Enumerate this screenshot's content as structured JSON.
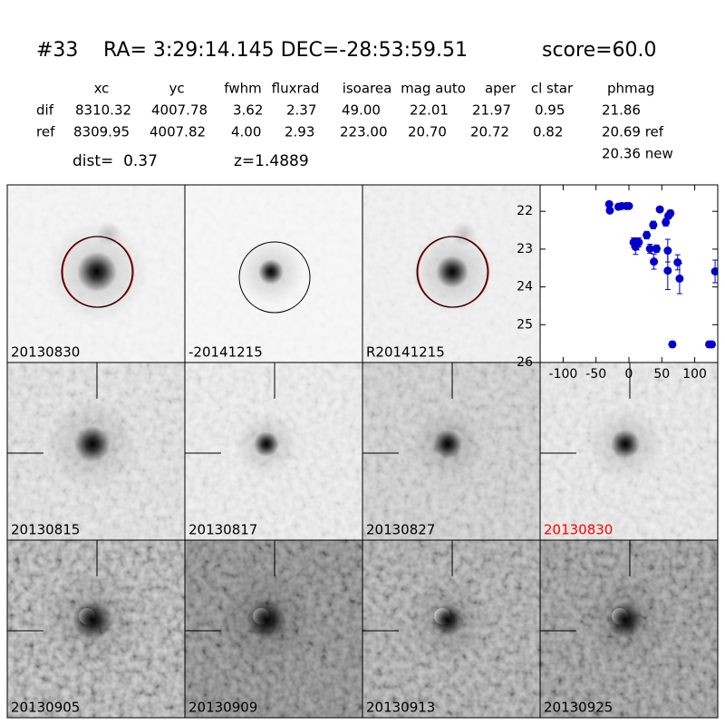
{
  "header": {
    "object": "#33",
    "coords": "RA= 3:29:14.145 DEC=-28:53:59.51",
    "score": "score=60.0"
  },
  "table": {
    "columns": [
      "xc",
      "yc",
      "fwhm",
      "fluxrad",
      "isoarea",
      "mag auto",
      "aper",
      "cl star",
      "phmag"
    ],
    "rows": [
      [
        "dif",
        "8310.32",
        "4007.78",
        "3.62",
        "2.37",
        "49.00",
        "22.01",
        "21.97",
        "0.95",
        "21.86"
      ],
      [
        "ref",
        "8309.95",
        "4007.82",
        "4.00",
        "2.93",
        "223.00",
        "20.70",
        "20.72",
        "0.82",
        "20.69 ref"
      ]
    ],
    "extra": "20.36 new",
    "dist": "dist=  0.37",
    "z": "z=1.4889"
  },
  "panels": [
    {
      "label": "20130830"
    },
    {
      "label": "-20141215"
    },
    {
      "label": "R20141215"
    },
    {
      "label": "20130815"
    },
    {
      "label": "20130817"
    },
    {
      "label": "20130827"
    },
    {
      "label": "20130830",
      "color": "#ff0000"
    },
    {
      "label": "20130905"
    },
    {
      "label": "20130909"
    },
    {
      "label": "20130913"
    },
    {
      "label": "20130925"
    }
  ],
  "chart_data": {
    "type": "scatter",
    "color": "#0000cc",
    "x": [
      -30,
      -29,
      -16,
      -11,
      -4,
      0,
      7,
      12,
      10,
      15,
      27,
      32,
      37,
      38,
      42,
      47,
      56,
      60,
      63,
      59,
      59,
      66,
      74,
      77,
      122,
      126,
      131
    ],
    "values": [
      21.81,
      21.98,
      21.88,
      21.86,
      21.86,
      21.86,
      22.82,
      22.87,
      22.94,
      22.82,
      22.63,
      22.99,
      22.36,
      23.33,
      22.99,
      21.95,
      22.29,
      22.12,
      22.05,
      23.04,
      23.57,
      25.52,
      23.35,
      23.78,
      25.52,
      25.52,
      23.59
    ],
    "errors": [
      0.05,
      0.05,
      0.05,
      0.05,
      0.05,
      0.05,
      0.12,
      0.15,
      0.2,
      0.12,
      0.1,
      0.12,
      0.1,
      0.2,
      0.1,
      0.05,
      0.1,
      0.08,
      0.08,
      0.3,
      0.5,
      0.08,
      0.2,
      0.4,
      0.08,
      0.08,
      0.3
    ],
    "xlim": [
      -135,
      135
    ],
    "ylim": [
      26,
      21.3
    ],
    "xticks": [
      -100,
      -50,
      0,
      50,
      100
    ],
    "yticks": [
      22,
      23,
      24,
      25,
      26
    ]
  }
}
